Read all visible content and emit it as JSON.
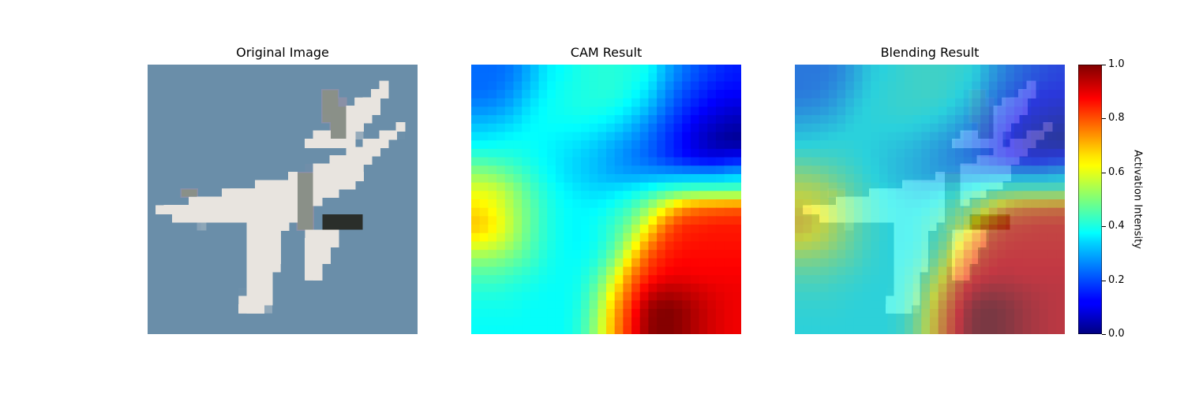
{
  "chart_data": [
    {
      "type": "heatmap",
      "title": "Original Image",
      "content": "32x32 pixelated photograph of a white fighter jet on a blue-grey sky",
      "axes": "off"
    },
    {
      "type": "heatmap",
      "title": "CAM Result",
      "colormap": "jet",
      "grid_size": [
        16,
        16
      ],
      "axes": "off",
      "values": [
        [
          0.23,
          0.23,
          0.25,
          0.3,
          0.36,
          0.38,
          0.4,
          0.41,
          0.41,
          0.4,
          0.38,
          0.3,
          0.24,
          0.2,
          0.17,
          0.15
        ],
        [
          0.23,
          0.24,
          0.27,
          0.32,
          0.37,
          0.39,
          0.4,
          0.41,
          0.41,
          0.39,
          0.35,
          0.27,
          0.21,
          0.17,
          0.14,
          0.13
        ],
        [
          0.26,
          0.27,
          0.3,
          0.35,
          0.38,
          0.39,
          0.4,
          0.4,
          0.39,
          0.36,
          0.31,
          0.24,
          0.18,
          0.14,
          0.11,
          0.09
        ],
        [
          0.31,
          0.32,
          0.34,
          0.37,
          0.38,
          0.38,
          0.38,
          0.37,
          0.35,
          0.31,
          0.26,
          0.2,
          0.15,
          0.1,
          0.07,
          0.05
        ],
        [
          0.36,
          0.37,
          0.38,
          0.38,
          0.37,
          0.36,
          0.35,
          0.33,
          0.3,
          0.27,
          0.23,
          0.18,
          0.13,
          0.08,
          0.04,
          0.02
        ],
        [
          0.43,
          0.42,
          0.41,
          0.39,
          0.37,
          0.35,
          0.33,
          0.31,
          0.28,
          0.25,
          0.22,
          0.18,
          0.14,
          0.11,
          0.1,
          0.12
        ],
        [
          0.52,
          0.5,
          0.46,
          0.42,
          0.38,
          0.35,
          0.33,
          0.31,
          0.29,
          0.28,
          0.28,
          0.28,
          0.28,
          0.28,
          0.28,
          0.3
        ],
        [
          0.6,
          0.58,
          0.52,
          0.45,
          0.4,
          0.37,
          0.35,
          0.34,
          0.35,
          0.37,
          0.4,
          0.44,
          0.46,
          0.47,
          0.47,
          0.47
        ],
        [
          0.65,
          0.61,
          0.54,
          0.47,
          0.41,
          0.38,
          0.37,
          0.37,
          0.4,
          0.44,
          0.52,
          0.62,
          0.72,
          0.76,
          0.77,
          0.78
        ],
        [
          0.68,
          0.63,
          0.55,
          0.47,
          0.41,
          0.38,
          0.37,
          0.39,
          0.43,
          0.5,
          0.62,
          0.76,
          0.83,
          0.84,
          0.85,
          0.85
        ],
        [
          0.62,
          0.59,
          0.53,
          0.46,
          0.41,
          0.38,
          0.37,
          0.39,
          0.45,
          0.57,
          0.72,
          0.82,
          0.85,
          0.86,
          0.86,
          0.86
        ],
        [
          0.52,
          0.51,
          0.48,
          0.44,
          0.4,
          0.38,
          0.38,
          0.41,
          0.5,
          0.66,
          0.8,
          0.85,
          0.87,
          0.87,
          0.87,
          0.87
        ],
        [
          0.45,
          0.45,
          0.43,
          0.41,
          0.39,
          0.38,
          0.39,
          0.45,
          0.58,
          0.75,
          0.84,
          0.88,
          0.89,
          0.88,
          0.88,
          0.88
        ],
        [
          0.41,
          0.41,
          0.4,
          0.39,
          0.38,
          0.38,
          0.4,
          0.49,
          0.65,
          0.8,
          0.91,
          0.95,
          0.94,
          0.92,
          0.9,
          0.89
        ],
        [
          0.39,
          0.39,
          0.39,
          0.38,
          0.38,
          0.38,
          0.41,
          0.52,
          0.7,
          0.84,
          0.97,
          1.0,
          0.98,
          0.94,
          0.91,
          0.89
        ],
        [
          0.38,
          0.38,
          0.38,
          0.38,
          0.38,
          0.38,
          0.42,
          0.54,
          0.72,
          0.86,
          0.98,
          1.0,
          0.98,
          0.94,
          0.91,
          0.89
        ]
      ]
    },
    {
      "type": "heatmap",
      "title": "Blending Result",
      "content": "CAM Result overlaid on Original Image",
      "axes": "off"
    }
  ],
  "colorbar": {
    "label": "Activation Intensity",
    "range": [
      0.0,
      1.0
    ],
    "ticks": [
      "0.0",
      "0.2",
      "0.4",
      "0.6",
      "0.8",
      "1.0"
    ]
  },
  "colors": {
    "sky": "#6b8ea9",
    "jet_white": "#e8e4df",
    "jet_grey": "#8a9088",
    "jet_dark": "#2b2d2c"
  }
}
